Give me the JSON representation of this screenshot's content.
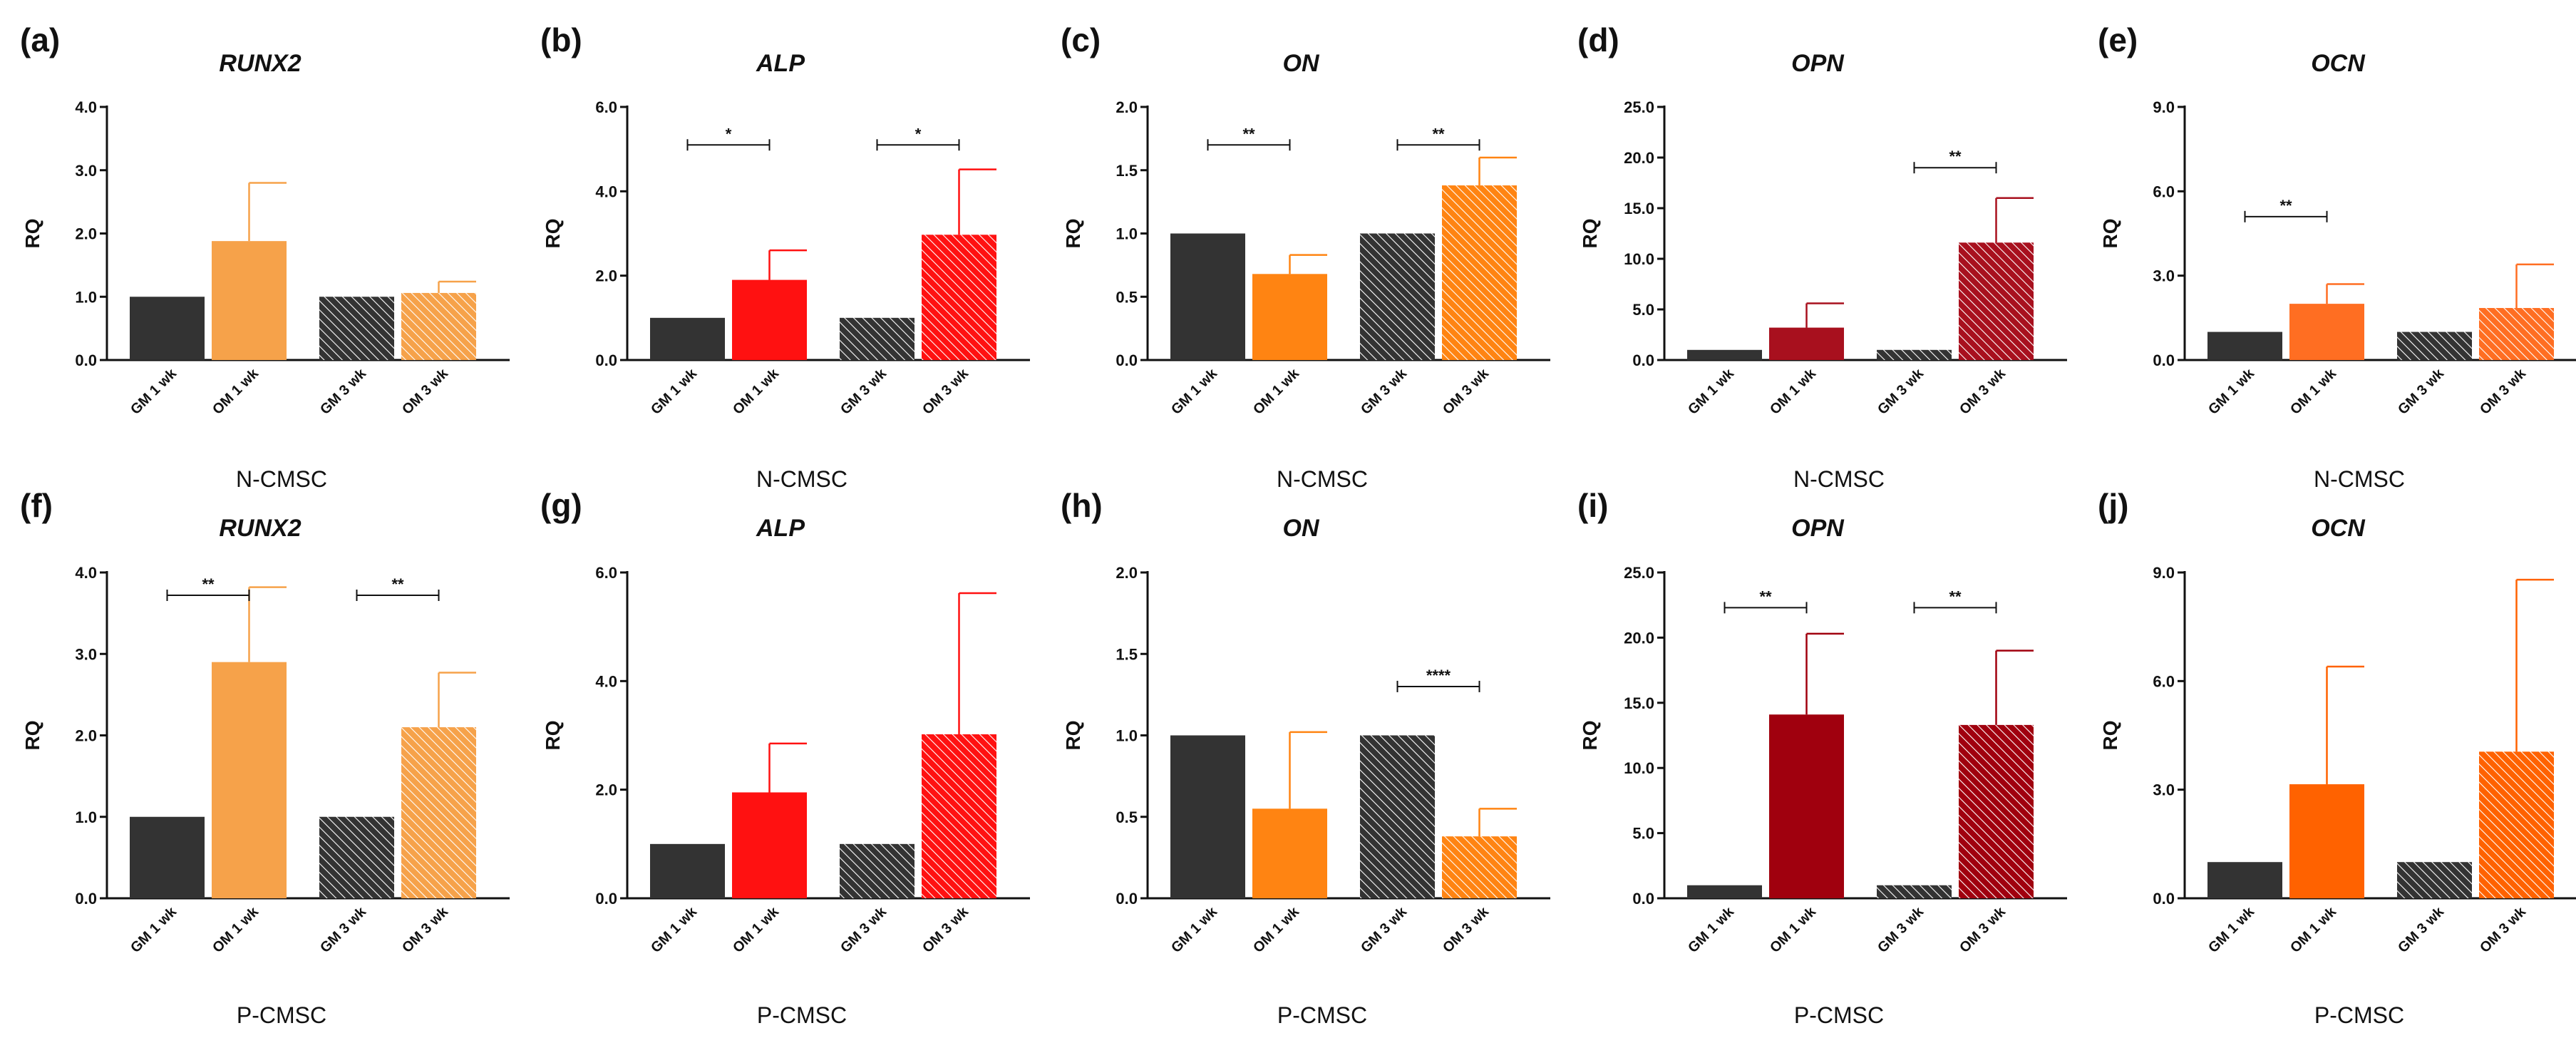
{
  "figure": {
    "panel_colors": [
      {
        "gm": "#333333",
        "om": "#f6a24a"
      },
      {
        "gm": "#333333",
        "om": "#ff1111"
      },
      {
        "gm": "#333333",
        "om": "#ff8412"
      },
      {
        "gm": "#333333",
        "om": "#a8101e"
      },
      {
        "gm": "#333333",
        "om": "#ff6e22"
      },
      {
        "gm": "#333333",
        "om": "#f6a24a"
      },
      {
        "gm": "#333333",
        "om": "#ff1111"
      },
      {
        "gm": "#333333",
        "om": "#ff8412"
      },
      {
        "gm": "#333333",
        "om": "#a0000e"
      },
      {
        "gm": "#333333",
        "om": "#ff6200"
      }
    ]
  },
  "chart_data": [
    {
      "panel": "(a)",
      "title": "RUNX2",
      "type": "bar",
      "xlabel": "N-CMSC",
      "ylabel": "RQ",
      "ylim": [
        0,
        4
      ],
      "yticks": [
        "0.0",
        "1.0",
        "2.0",
        "3.0",
        "4.0"
      ],
      "categories": [
        "GM 1 wk",
        "OM 1 wk",
        "GM 3 wk",
        "OM 3 wk"
      ],
      "values": [
        1.0,
        1.88,
        1.0,
        1.06
      ],
      "errors": [
        0,
        0.92,
        0,
        0.18
      ],
      "significance": []
    },
    {
      "panel": "(b)",
      "title": "ALP",
      "type": "bar",
      "xlabel": "N-CMSC",
      "ylabel": "RQ",
      "ylim": [
        0,
        6
      ],
      "yticks": [
        "0.0",
        "2.0",
        "4.0",
        "6.0"
      ],
      "categories": [
        "GM 1 wk",
        "OM 1 wk",
        "GM 3 wk",
        "OM 3 wk"
      ],
      "values": [
        1.0,
        1.9,
        1.0,
        2.97
      ],
      "errors": [
        0,
        0.7,
        0,
        1.55
      ],
      "significance": [
        {
          "from": 0,
          "to": 1,
          "label": "*",
          "y": 5.1
        },
        {
          "from": 2,
          "to": 3,
          "label": "*",
          "y": 5.1
        }
      ]
    },
    {
      "panel": "(c)",
      "title": "ON",
      "type": "bar",
      "xlabel": "N-CMSC",
      "ylabel": "RQ",
      "ylim": [
        0,
        2
      ],
      "yticks": [
        "0.0",
        "0.5",
        "1.0",
        "1.5",
        "2.0"
      ],
      "categories": [
        "GM 1 wk",
        "OM 1 wk",
        "GM 3 wk",
        "OM 3 wk"
      ],
      "values": [
        1.0,
        0.68,
        1.0,
        1.38
      ],
      "errors": [
        0,
        0.15,
        0,
        0.22
      ],
      "significance": [
        {
          "from": 0,
          "to": 1,
          "label": "**",
          "y": 1.7
        },
        {
          "from": 2,
          "to": 3,
          "label": "**",
          "y": 1.7
        }
      ]
    },
    {
      "panel": "(d)",
      "title": "OPN",
      "type": "bar",
      "xlabel": "N-CMSC",
      "ylabel": "RQ",
      "ylim": [
        0,
        25
      ],
      "yticks": [
        "0.0",
        "5.0",
        "10.0",
        "15.0",
        "20.0",
        "25.0"
      ],
      "categories": [
        "GM 1 wk",
        "OM 1 wk",
        "GM 3 wk",
        "OM 3 wk"
      ],
      "values": [
        1.0,
        3.2,
        1.0,
        11.6
      ],
      "errors": [
        0,
        2.4,
        0,
        4.4
      ],
      "significance": [
        {
          "from": 2,
          "to": 3,
          "label": "**",
          "y": 19.0
        }
      ]
    },
    {
      "panel": "(e)",
      "title": "OCN",
      "type": "bar",
      "xlabel": "N-CMSC",
      "ylabel": "RQ",
      "ylim": [
        0,
        9
      ],
      "yticks": [
        "0.0",
        "3.0",
        "6.0",
        "9.0"
      ],
      "categories": [
        "GM 1 wk",
        "OM 1 wk",
        "GM 3 wk",
        "OM 3 wk"
      ],
      "values": [
        1.0,
        2.0,
        1.0,
        1.85
      ],
      "errors": [
        0,
        0.7,
        0,
        1.55
      ],
      "significance": [
        {
          "from": 0,
          "to": 1,
          "label": "**",
          "y": 5.1
        }
      ]
    },
    {
      "panel": "(f)",
      "title": "RUNX2",
      "type": "bar",
      "xlabel": "P-CMSC",
      "ylabel": "RQ",
      "ylim": [
        0,
        4
      ],
      "yticks": [
        "0.0",
        "1.0",
        "2.0",
        "3.0",
        "4.0"
      ],
      "categories": [
        "GM 1 wk",
        "OM 1 wk",
        "GM 3 wk",
        "OM 3 wk"
      ],
      "values": [
        1.0,
        2.9,
        1.0,
        2.1
      ],
      "errors": [
        0,
        0.92,
        0,
        0.67
      ],
      "significance": [
        {
          "from": 0,
          "to": 1,
          "label": "**",
          "y": 3.72
        },
        {
          "from": 2,
          "to": 3,
          "label": "**",
          "y": 3.72
        }
      ]
    },
    {
      "panel": "(g)",
      "title": "ALP",
      "type": "bar",
      "xlabel": "P-CMSC",
      "ylabel": "RQ",
      "ylim": [
        0,
        6
      ],
      "yticks": [
        "0.0",
        "2.0",
        "4.0",
        "6.0"
      ],
      "categories": [
        "GM 1 wk",
        "OM 1 wk",
        "GM 3 wk",
        "OM 3 wk"
      ],
      "values": [
        1.0,
        1.95,
        1.0,
        3.02
      ],
      "errors": [
        0,
        0.9,
        0,
        2.6
      ],
      "significance": []
    },
    {
      "panel": "(h)",
      "title": "ON",
      "type": "bar",
      "xlabel": "P-CMSC",
      "ylabel": "RQ",
      "ylim": [
        0,
        2
      ],
      "yticks": [
        "0.0",
        "0.5",
        "1.0",
        "1.5",
        "2.0"
      ],
      "categories": [
        "GM 1 wk",
        "OM 1 wk",
        "GM 3 wk",
        "OM 3 wk"
      ],
      "values": [
        1.0,
        0.55,
        1.0,
        0.38
      ],
      "errors": [
        0,
        0.47,
        0,
        0.17
      ],
      "significance": [
        {
          "from": 2,
          "to": 3,
          "label": "****",
          "y": 1.3
        }
      ]
    },
    {
      "panel": "(i)",
      "title": "OPN",
      "type": "bar",
      "xlabel": "P-CMSC",
      "ylabel": "RQ",
      "ylim": [
        0,
        25
      ],
      "yticks": [
        "0.0",
        "5.0",
        "10.0",
        "15.0",
        "20.0",
        "25.0"
      ],
      "categories": [
        "GM 1 wk",
        "OM 1 wk",
        "GM 3 wk",
        "OM 3 wk"
      ],
      "values": [
        1.0,
        14.1,
        1.0,
        13.3
      ],
      "errors": [
        0,
        6.2,
        0,
        5.7
      ],
      "significance": [
        {
          "from": 0,
          "to": 1,
          "label": "**",
          "y": 22.3
        },
        {
          "from": 2,
          "to": 3,
          "label": "**",
          "y": 22.3
        }
      ]
    },
    {
      "panel": "(j)",
      "title": "OCN",
      "type": "bar",
      "xlabel": "P-CMSC",
      "ylabel": "RQ",
      "ylim": [
        0,
        9
      ],
      "yticks": [
        "0.0",
        "3.0",
        "6.0",
        "9.0"
      ],
      "categories": [
        "GM 1 wk",
        "OM 1 wk",
        "GM 3 wk",
        "OM 3 wk"
      ],
      "values": [
        1.0,
        3.15,
        1.0,
        4.05
      ],
      "errors": [
        0,
        3.25,
        0,
        4.75
      ],
      "significance": []
    }
  ]
}
